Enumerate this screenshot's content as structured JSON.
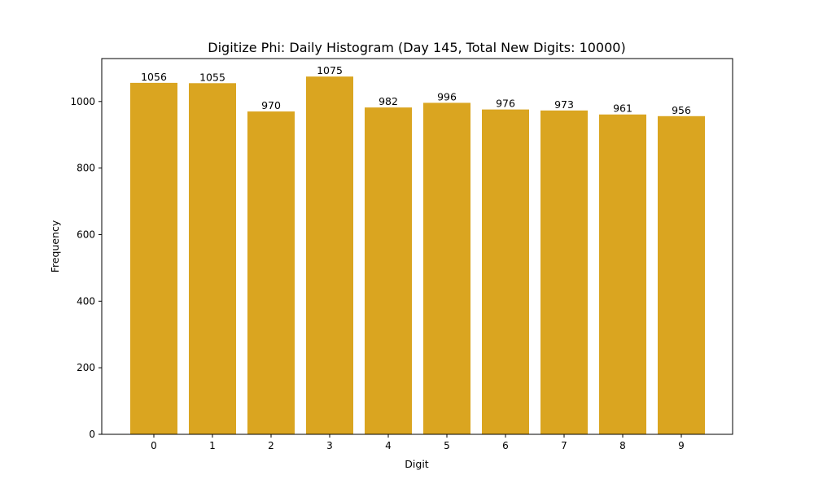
{
  "chart_data": {
    "type": "bar",
    "title": "Digitize Phi: Daily Histogram (Day 145, Total New Digits: 10000)",
    "xlabel": "Digit",
    "ylabel": "Frequency",
    "categories": [
      "0",
      "1",
      "2",
      "3",
      "4",
      "5",
      "6",
      "7",
      "8",
      "9"
    ],
    "values": [
      1056,
      1055,
      970,
      1075,
      982,
      996,
      976,
      973,
      961,
      956
    ],
    "ylim": [
      0,
      1129
    ],
    "yticks": [
      0,
      200,
      400,
      600,
      800,
      1000
    ],
    "bar_color": "#DAA520",
    "grid": false,
    "legend": null,
    "data_labels": true
  }
}
